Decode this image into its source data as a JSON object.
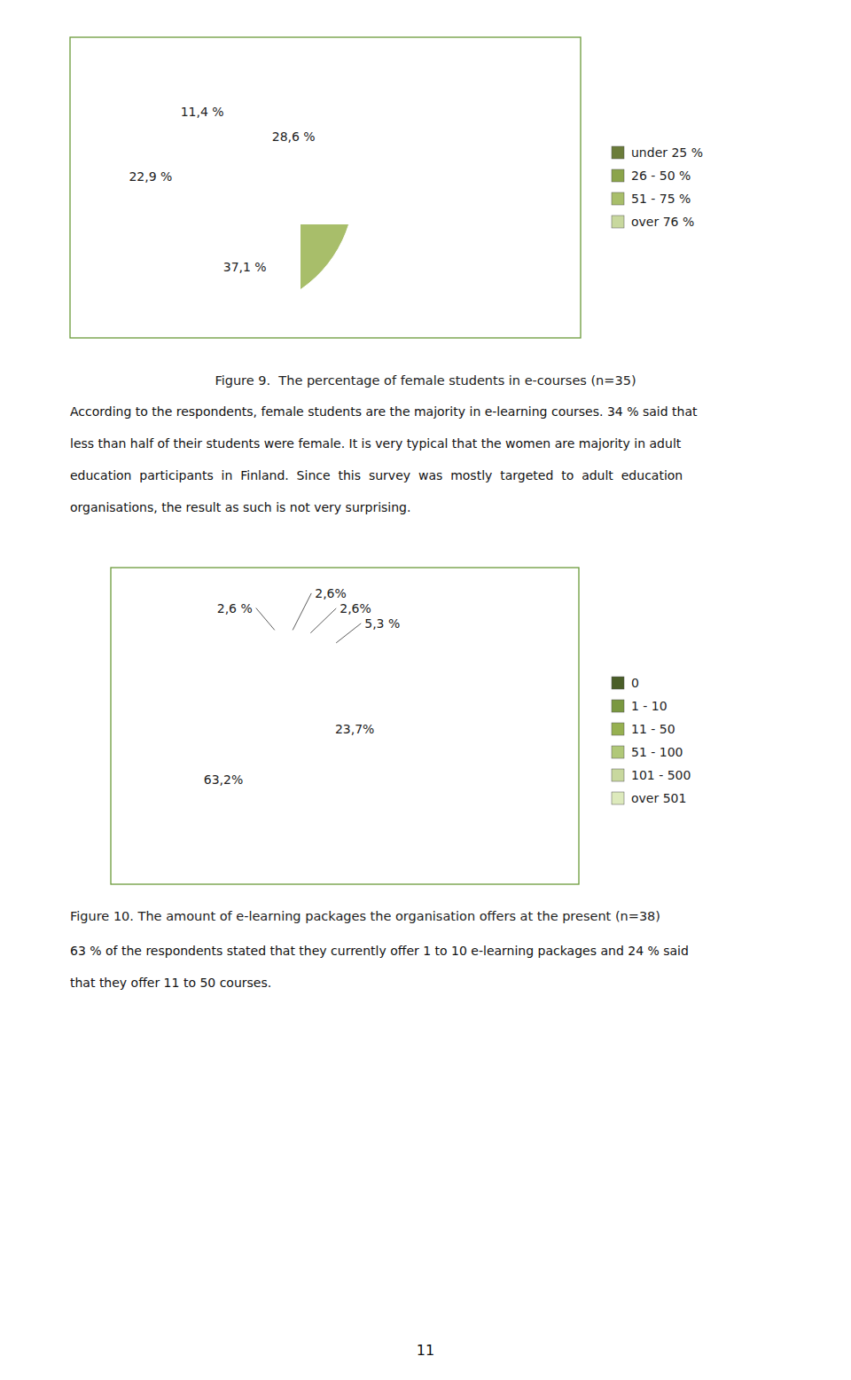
{
  "chart_data": [
    {
      "type": "pie",
      "title": "Figure 9.  The percentage of female students in e-courses (n=35)",
      "categories": [
        "under 25 %",
        "26 - 50 %",
        "51 - 75 %",
        "over 76 %"
      ],
      "values": [
        11.4,
        22.9,
        37.1,
        28.6
      ],
      "value_labels": [
        "11,4 %",
        "22,9 %",
        "37,1 %",
        "28,6 %"
      ],
      "colors": [
        "#6b7c3a",
        "#8ba44a",
        "#a8be6a",
        "#c8d89e"
      ],
      "data_labels": true,
      "legend": "right"
    },
    {
      "type": "pie",
      "title": "Figure 10. The amount of e-learning packages the organisation offers at the present (n=38)",
      "categories": [
        "0",
        "1 - 10",
        "11 - 50",
        "51 - 100",
        "101 - 500",
        "over 501"
      ],
      "values": [
        2.6,
        63.2,
        23.7,
        5.3,
        2.6,
        2.6
      ],
      "value_labels": [
        "2,6 %",
        "63,2%",
        "23,7%",
        "5,3 %",
        "2,6%",
        "2,6%"
      ],
      "colors": [
        "#4a5e28",
        "#7a9840",
        "#96b050",
        "#b0c878",
        "#c8d89e",
        "#ddeabc"
      ],
      "data_labels": true,
      "legend": "right"
    }
  ],
  "body_text_1": [
    "According to the respondents, female students are the majority in e-learning courses. 34 % said that",
    "less than half of their students were female. It is very typical that the women are majority in adult",
    "education  participants  in  Finland.  Since  this  survey  was  mostly  targeted  to  adult  education",
    "organisations, the result as such is not very surprising."
  ],
  "body_text_2": [
    "63 % of the respondents stated that they currently offer 1 to 10 e-learning packages and 24 % said",
    "that they offer 11 to 50 courses."
  ],
  "page_number": "11"
}
